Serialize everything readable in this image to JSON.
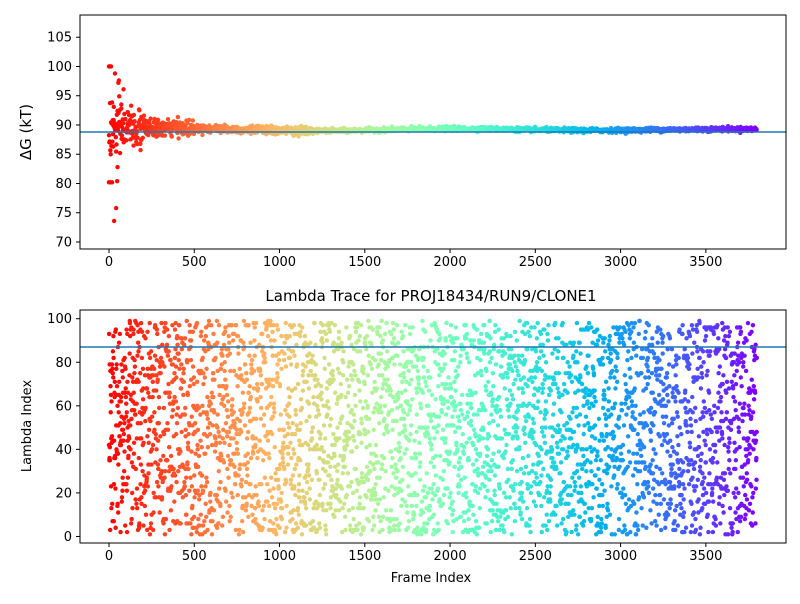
{
  "chart_data": [
    {
      "type": "scatter",
      "title": "",
      "ylabel": "ΔG (kT)",
      "xlabel": "",
      "xlim": [
        -170,
        3970
      ],
      "ylim": [
        68.8,
        108.8
      ],
      "xticks": [
        "0",
        "500",
        "1000",
        "1500",
        "2000",
        "2500",
        "3000",
        "3500"
      ],
      "yticks": [
        "70",
        "75",
        "80",
        "85",
        "90",
        "95",
        "100",
        "105"
      ],
      "reference_line": {
        "y": 88.8,
        "color": "#1f77b4"
      },
      "colormap": "rainbow (red at frame 0 → violet at last frame)",
      "n_frames": 3800,
      "converged_value": 88.8,
      "early_outliers": [
        {
          "x": 0,
          "y": 100
        },
        {
          "x": 5,
          "y": 100
        },
        {
          "x": 12,
          "y": 100
        },
        {
          "x": 0,
          "y": 80.2
        },
        {
          "x": 8,
          "y": 80.2
        },
        {
          "x": 18,
          "y": 80.2
        },
        {
          "x": 30,
          "y": 73.6
        },
        {
          "x": 42,
          "y": 75.8
        },
        {
          "x": 48,
          "y": 80.4
        },
        {
          "x": 35,
          "y": 98.8
        },
        {
          "x": 55,
          "y": 97.2
        },
        {
          "x": 60,
          "y": 94.9
        },
        {
          "x": 28,
          "y": 93.1
        },
        {
          "x": 72,
          "y": 93.5
        },
        {
          "x": 85,
          "y": 96.1
        },
        {
          "x": 50,
          "y": 82.8
        },
        {
          "x": 65,
          "y": 85.2
        },
        {
          "x": 25,
          "y": 86.3
        },
        {
          "x": 110,
          "y": 92.2
        },
        {
          "x": 130,
          "y": 93.3
        },
        {
          "x": 160,
          "y": 87.1
        },
        {
          "x": 185,
          "y": 85.7
        },
        {
          "x": 205,
          "y": 91.6
        },
        {
          "x": 240,
          "y": 89.8
        }
      ]
    },
    {
      "type": "scatter",
      "title": "Lambda Trace for PROJ18434/RUN9/CLONE1",
      "xlabel": "Frame Index",
      "ylabel": "Lambda Index",
      "xlim": [
        -170,
        3970
      ],
      "ylim": [
        -3,
        104
      ],
      "xticks": [
        "0",
        "500",
        "1000",
        "1500",
        "2000",
        "2500",
        "3000",
        "3500"
      ],
      "yticks": [
        "0",
        "20",
        "40",
        "60",
        "80",
        "100"
      ],
      "reference_line": {
        "y": 87,
        "color": "#1f77b4"
      },
      "colormap": "rainbow (red at frame 0 → violet at last frame)",
      "n_frames": 3800,
      "lambda_range": [
        1,
        99
      ]
    }
  ]
}
